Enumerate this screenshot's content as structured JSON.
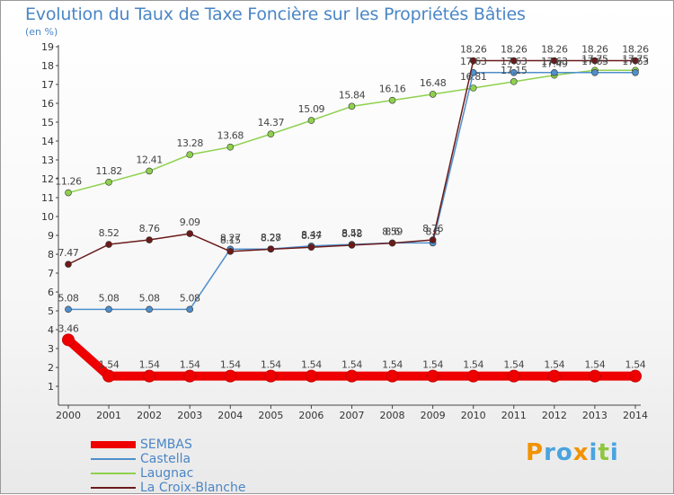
{
  "title": "Evolution du Taux de Taxe Foncière sur les Propriétés Bâties",
  "unit": "(en %)",
  "logo": {
    "text": "Proxiti",
    "letters": [
      "P",
      "r",
      "o",
      "x",
      "i",
      "t",
      "i"
    ],
    "colors": [
      "#f29200",
      "#4aa3df",
      "#4aa3df",
      "#f29200",
      "#4aa3df",
      "#8fc63f",
      "#4aa3df"
    ]
  },
  "chart_data": {
    "type": "line",
    "title": "Evolution du Taux de Taxe Foncière sur les Propriétés Bâties",
    "ylabel": "(en %)",
    "xlabel": "",
    "x": [
      "2000",
      "2001",
      "2002",
      "2003",
      "2004",
      "2005",
      "2006",
      "2007",
      "2008",
      "2009",
      "2010",
      "2011",
      "2012",
      "2013",
      "2014"
    ],
    "ylim": [
      0,
      19
    ],
    "yticks": [
      "1",
      "2",
      "3",
      "4",
      "5",
      "6",
      "7",
      "8",
      "9",
      "10",
      "11",
      "12",
      "13",
      "14",
      "15",
      "16",
      "17",
      "18",
      "19"
    ],
    "grid": false,
    "series": [
      {
        "name": "SEMBAS",
        "color": "#ee0000",
        "values": [
          3.46,
          1.54,
          1.54,
          1.54,
          1.54,
          1.54,
          1.54,
          1.54,
          1.54,
          1.54,
          1.54,
          1.54,
          1.54,
          1.54,
          1.54
        ],
        "labels": [
          "3.46",
          "1.54",
          "1.54",
          "1.54",
          "1.54",
          "1.54",
          "1.54",
          "1.54",
          "1.54",
          "1.54",
          "1.54",
          "1.54",
          "1.54",
          "1.54",
          "1.54"
        ]
      },
      {
        "name": "Castella",
        "color": "#4f8fcc",
        "values": [
          5.08,
          5.08,
          5.08,
          5.08,
          8.27,
          8.28,
          8.44,
          8.52,
          8.6,
          8.6,
          17.63,
          17.63,
          17.63,
          17.63,
          17.63
        ],
        "labels": [
          "5.08",
          "5.08",
          "5.08",
          "5.08",
          "8.27",
          "8.28",
          "8.44",
          "8.52",
          "8.6",
          "8.6",
          "17.63",
          "17.63",
          "17.63",
          "17.63",
          "17.63"
        ]
      },
      {
        "name": "Laugnac",
        "color": "#8fd14f",
        "values": [
          11.26,
          11.82,
          12.41,
          13.28,
          13.68,
          14.37,
          15.09,
          15.84,
          16.16,
          16.48,
          16.81,
          17.15,
          17.49,
          17.75,
          17.75
        ],
        "labels": [
          "11.26",
          "11.82",
          "12.41",
          "13.28",
          "13.68",
          "14.37",
          "15.09",
          "15.84",
          "16.16",
          "16.48",
          "16.81",
          "17.15",
          "17.49",
          "17.75",
          "17.75"
        ]
      },
      {
        "name": "La Croix-Blanche",
        "color": "#6b1a1a",
        "values": [
          7.47,
          8.52,
          8.76,
          9.09,
          8.15,
          8.27,
          8.37,
          8.48,
          8.59,
          8.76,
          18.26,
          18.26,
          18.26,
          18.26,
          18.26
        ],
        "labels": [
          "7.47",
          "8.52",
          "8.76",
          "9.09",
          "8.15",
          "8.27",
          "8.37",
          "8.48",
          "8.59",
          "8.76",
          "18.26",
          "18.26",
          "18.26",
          "18.26",
          "18.26"
        ]
      }
    ]
  }
}
